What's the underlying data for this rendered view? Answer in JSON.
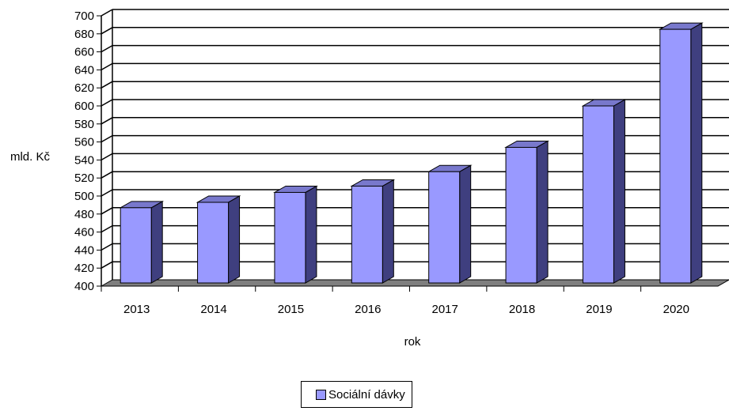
{
  "chart_data": {
    "type": "bar",
    "categories": [
      "2013",
      "2014",
      "2015",
      "2016",
      "2017",
      "2018",
      "2019",
      "2020"
    ],
    "series": [
      {
        "name": "Sociální dávky",
        "values": [
          487,
          493,
          504,
          511,
          527,
          554,
          600,
          685
        ]
      }
    ],
    "xlabel": "rok",
    "ylabel": "mld. Kč",
    "ylim": [
      400,
      700
    ],
    "yticks": [
      400,
      420,
      440,
      460,
      480,
      500,
      520,
      540,
      560,
      580,
      600,
      620,
      640,
      660,
      680,
      700
    ],
    "grid": true,
    "legend_position": "bottom",
    "style": "3d-column",
    "colors": {
      "bar_front": "#9999ff",
      "bar_side": "#3f3f7f",
      "bar_top": "#7878cc",
      "floor": "#7f7f7f",
      "grid": "#000000"
    }
  }
}
